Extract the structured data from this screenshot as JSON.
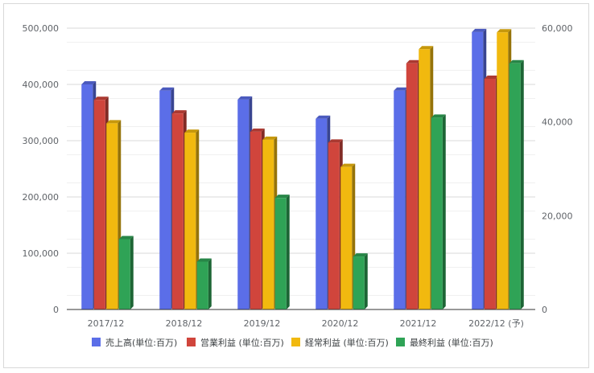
{
  "chart_data": {
    "type": "bar",
    "style": "3d-clustered-column",
    "categories": [
      "2017/12",
      "2018/12",
      "2019/12",
      "2020/12",
      "2021/12",
      "2022/12 (予)"
    ],
    "series": [
      {
        "name": "売上高(単位:百万)",
        "axis": "left",
        "color": "#5b6ee8",
        "values": [
          400000,
          389000,
          373000,
          339000,
          389000,
          493000
        ]
      },
      {
        "name": "営業利益 (単位:百万)",
        "axis": "right",
        "color": "#d0453c",
        "values": [
          44700,
          41800,
          37900,
          35600,
          52500,
          49200
        ]
      },
      {
        "name": "経常利益 (単位:百万)",
        "axis": "right",
        "color": "#f1b90f",
        "values": [
          39700,
          37700,
          36200,
          30400,
          55500,
          59100
        ]
      },
      {
        "name": "最終利益 (単位:百万)",
        "axis": "right",
        "color": "#2fa356",
        "values": [
          15000,
          10200,
          23800,
          11300,
          40900,
          52500
        ]
      }
    ],
    "y_left": {
      "ylim": [
        0,
        500000
      ],
      "ticks": [
        0,
        100000,
        200000,
        300000,
        400000,
        500000
      ],
      "tick_labels": [
        "0",
        "100,000",
        "200,000",
        "300,000",
        "400,000",
        "500,000"
      ]
    },
    "y_right": {
      "ylim": [
        0,
        60000
      ],
      "ticks": [
        0,
        20000,
        40000,
        60000
      ],
      "tick_labels": [
        "0",
        "20,000",
        "40,000",
        "60,000"
      ]
    },
    "grid": true,
    "legend": "bottom"
  }
}
